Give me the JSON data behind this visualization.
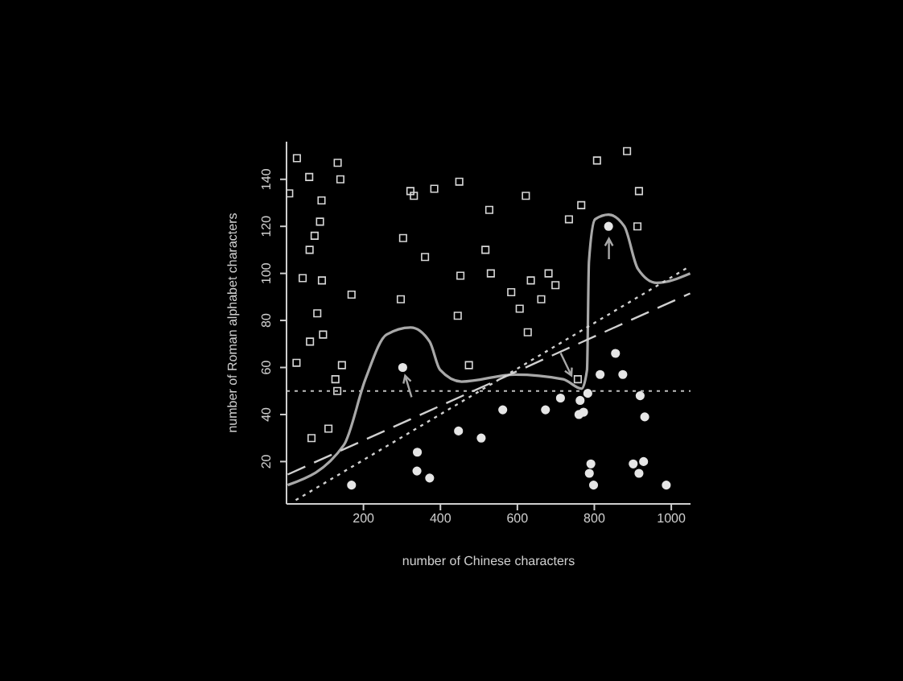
{
  "chart_data": {
    "type": "scatter",
    "xlabel": "number of Chinese characters",
    "ylabel": "number of Roman alphabet characters",
    "xlim": [
      0,
      1050
    ],
    "ylim": [
      2,
      156
    ],
    "xticks": [
      200,
      400,
      600,
      800,
      1000
    ],
    "yticks": [
      20,
      40,
      60,
      80,
      100,
      120,
      140
    ],
    "series": [
      {
        "marker": "square",
        "color": "#d8d8d8",
        "x": [
          7,
          27,
          59,
          133,
          140,
          91,
          87,
          73,
          60,
          42,
          92,
          169,
          80,
          95,
          61,
          26,
          144,
          127,
          132,
          109,
          65,
          322,
          331,
          384,
          449,
          303,
          360,
          452,
          297,
          445,
          474,
          517,
          527,
          622,
          531,
          635,
          681,
          699,
          584,
          662,
          606,
          627,
          766,
          734,
          807,
          885,
          916,
          912,
          757
        ],
        "values": [
          134,
          149,
          141,
          147,
          140,
          131,
          122,
          116,
          110,
          98,
          97,
          91,
          83,
          74,
          71,
          62,
          61,
          55,
          50,
          34,
          30,
          135,
          133,
          136,
          139,
          115,
          107,
          99,
          89,
          82,
          61,
          110,
          127,
          133,
          100,
          97,
          100,
          95,
          92,
          89,
          85,
          75,
          129,
          123,
          148,
          152,
          135,
          120,
          55
        ]
      },
      {
        "marker": "circle",
        "color": "#e6e6e6",
        "x": [
          169,
          302,
          340,
          339,
          372,
          447,
          506,
          562,
          673,
          712,
          763,
          760,
          772,
          783,
          815,
          855,
          874,
          919,
          931,
          837,
          791,
          787,
          798,
          901,
          928,
          916,
          987
        ],
        "values": [
          10,
          60,
          24,
          16,
          13,
          33,
          30,
          42,
          42,
          47,
          46,
          40,
          41,
          49,
          57,
          66,
          57,
          48,
          39,
          120,
          19,
          15,
          10,
          19,
          20,
          15,
          10
        ]
      },
      {
        "type": "line",
        "line_style": "solid",
        "color": "#a8a8a8",
        "x": [
          3,
          149,
          205,
          260,
          323,
          372,
          399,
          455,
          594,
          719,
          767,
          781,
          786,
          802,
          837,
          878,
          913,
          962,
          1049
        ],
        "values": [
          10,
          27,
          55,
          74,
          77,
          71,
          59,
          54,
          57,
          55,
          51,
          59,
          105,
          123,
          125,
          120,
          102,
          96,
          100
        ]
      },
      {
        "type": "line",
        "line_style": "dashed",
        "color": "#d0d0d0",
        "x": [
          3,
          1049
        ],
        "values": [
          14.5,
          91.5
        ]
      },
      {
        "type": "line",
        "line_style": "dotted",
        "color": "#d0d0d0",
        "x": [
          24,
          1048
        ],
        "values": [
          3.6,
          103
        ]
      }
    ],
    "ref_lines": [
      {
        "axis": "y",
        "value": 50,
        "line_style": "dotted",
        "color": "#bdbdbd"
      }
    ]
  }
}
